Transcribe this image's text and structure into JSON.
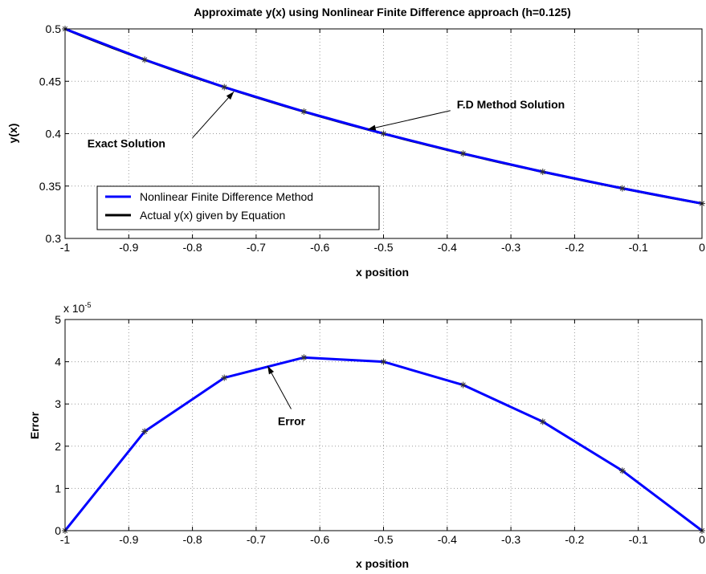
{
  "chart_data": [
    {
      "type": "line",
      "title": "Approximate y(x) using Nonlinear Finite Difference approach (h=0.125)",
      "xlabel": "x position",
      "ylabel": "y(x)",
      "xlim": [
        -1,
        0
      ],
      "ylim": [
        0.3,
        0.5
      ],
      "grid": true,
      "xticks": [
        -1,
        -0.9,
        -0.8,
        -0.7,
        -0.6,
        -0.5,
        -0.4,
        -0.3,
        -0.2,
        -0.1,
        0
      ],
      "xtick_labels": [
        "-1",
        "-0.9",
        "-0.8",
        "-0.7",
        "-0.6",
        "-0.5",
        "-0.4",
        "-0.3",
        "-0.2",
        "-0.1",
        "0"
      ],
      "yticks": [
        0.3,
        0.35,
        0.4,
        0.45,
        0.5
      ],
      "ytick_labels": [
        "0.3",
        "0.35",
        "0.4",
        "0.45",
        "0.5"
      ],
      "legend_position": "lower-left",
      "series": [
        {
          "name": "Nonlinear Finite Difference Method",
          "color": "#0000ff",
          "marker": "asterisk",
          "x": [
            -1,
            -0.875,
            -0.75,
            -0.625,
            -0.5,
            -0.375,
            -0.25,
            -0.125,
            0
          ],
          "y": [
            0.5,
            0.4706,
            0.4444,
            0.4211,
            0.4,
            0.381,
            0.3636,
            0.3478,
            0.3333
          ]
        },
        {
          "name": "Actual y(x) given by Equation",
          "color": "#000000",
          "function": "1/(x+3)",
          "samples": 81
        }
      ],
      "annotations": [
        {
          "text": "Exact Solution",
          "label_x": -0.965,
          "label_y": 0.387,
          "arrow_from": [
            -0.8,
            0.396
          ],
          "arrow_to": [
            -0.735,
            0.44
          ]
        },
        {
          "text": "F.D Method Solution",
          "label_x": -0.385,
          "label_y": 0.424,
          "arrow_from": [
            -0.395,
            0.422
          ],
          "arrow_to": [
            -0.525,
            0.404
          ]
        }
      ]
    },
    {
      "type": "line",
      "title": "",
      "xlabel": "x position",
      "ylabel": "Error",
      "xlim": [
        -1,
        0
      ],
      "ylim": [
        0,
        5
      ],
      "grid": true,
      "exponent_label": "x 10",
      "exponent_power": "-5",
      "xticks": [
        -1,
        -0.9,
        -0.8,
        -0.7,
        -0.6,
        -0.5,
        -0.4,
        -0.3,
        -0.2,
        -0.1,
        0
      ],
      "xtick_labels": [
        "-1",
        "-0.9",
        "-0.8",
        "-0.7",
        "-0.6",
        "-0.5",
        "-0.4",
        "-0.3",
        "-0.2",
        "-0.1",
        "0"
      ],
      "yticks": [
        0,
        1,
        2,
        3,
        4,
        5
      ],
      "ytick_labels": [
        "0",
        "1",
        "2",
        "3",
        "4",
        "5"
      ],
      "series": [
        {
          "color": "#0000ff",
          "marker": "asterisk",
          "x": [
            -1,
            -0.875,
            -0.75,
            -0.625,
            -0.5,
            -0.375,
            -0.25,
            -0.125,
            0
          ],
          "y": [
            0,
            2.35,
            3.62,
            4.1,
            4.0,
            3.45,
            2.58,
            1.42,
            0
          ]
        }
      ],
      "annotations": [
        {
          "text": "Error",
          "label_x": -0.666,
          "label_y": 2.5,
          "arrow_from": [
            -0.645,
            2.88
          ],
          "arrow_to": [
            -0.682,
            3.9
          ]
        }
      ]
    }
  ]
}
